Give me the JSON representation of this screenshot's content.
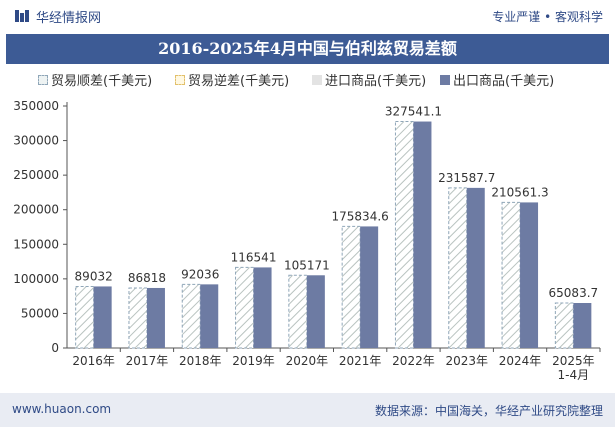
{
  "header": {
    "brand": "华经情报网",
    "tagline": "专业严谨 • 客观科学"
  },
  "colors": {
    "title_bg": "#3d5b95",
    "bar_export": "#6d7ba3",
    "bar_import_hatch": "#b9c3c0",
    "brand": "#2f4a86"
  },
  "chart_data": {
    "type": "bar",
    "title": "2016-2025年4月中国与伯利兹贸易差额",
    "categories": [
      "2016年",
      "2017年",
      "2018年",
      "2019年",
      "2020年",
      "2021年",
      "2022年",
      "2023年",
      "2024年",
      "2025年 1-4月"
    ],
    "series": [
      {
        "name": "贸易顺差(千美元)",
        "values": [
          89032,
          86818,
          92036,
          116541,
          105171,
          175834.6,
          327541.1,
          231587.7,
          210561.3,
          65083.7
        ],
        "labels": [
          "89032",
          "86818",
          "92036",
          "116541",
          "105171",
          "175834.6",
          "327541.1",
          "231587.7",
          "210561.3",
          "65083.7"
        ]
      },
      {
        "name": "贸易逆差(千美元)",
        "values": [
          null,
          null,
          null,
          null,
          null,
          null,
          null,
          null,
          null,
          null
        ]
      },
      {
        "name": "进口商品(千美元)",
        "values": [
          0,
          0,
          0,
          0,
          0,
          0,
          0,
          0,
          0,
          0
        ]
      },
      {
        "name": "出口商品(千美元)",
        "values": [
          89032,
          86818,
          92036,
          116541,
          105171,
          175834.6,
          327541.1,
          231587.7,
          210561.3,
          65083.7
        ]
      }
    ],
    "yticks": [
      "0",
      "50000",
      "100000",
      "150000",
      "200000",
      "250000",
      "300000",
      "350000"
    ],
    "ylim": [
      0,
      350000
    ],
    "grid": false,
    "legend": "top"
  },
  "footer": {
    "website": "www.huaon.com",
    "source": "数据来源：中国海关，华经产业研究院整理"
  }
}
